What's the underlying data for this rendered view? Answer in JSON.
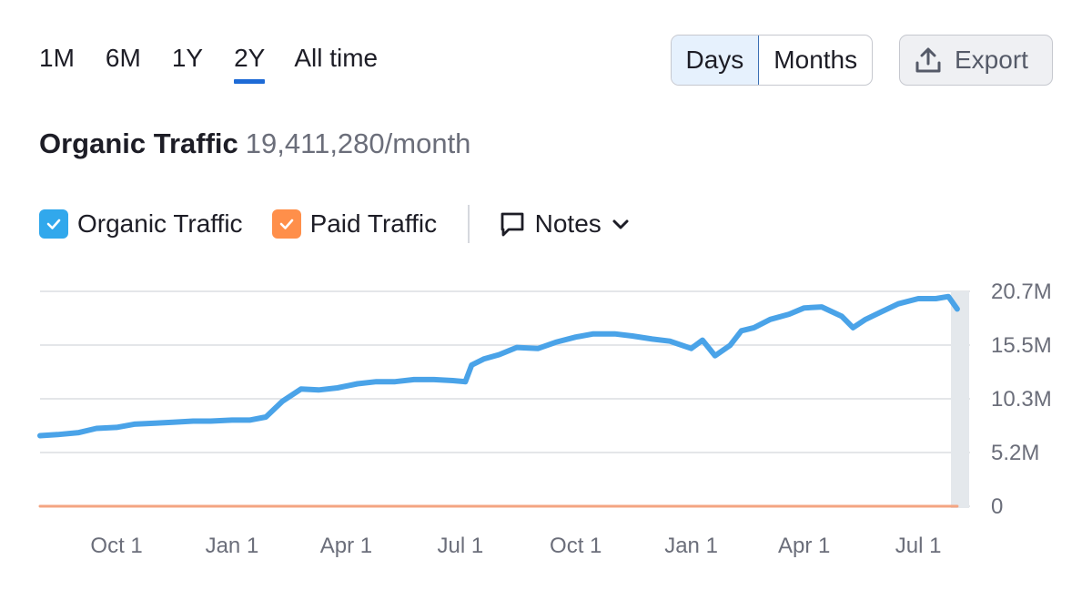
{
  "period_tabs": [
    {
      "label": "1M",
      "active": false
    },
    {
      "label": "6M",
      "active": false
    },
    {
      "label": "1Y",
      "active": false
    },
    {
      "label": "2Y",
      "active": true
    },
    {
      "label": "All time",
      "active": false
    }
  ],
  "granularity": {
    "days_label": "Days",
    "months_label": "Months",
    "selected": "Days"
  },
  "export_label": "Export",
  "headline": {
    "title": "Organic Traffic",
    "value": "19,411,280/month"
  },
  "legend": [
    {
      "label": "Organic Traffic",
      "checked": true,
      "color": "#31a8ec"
    },
    {
      "label": "Paid Traffic",
      "checked": true,
      "color": "#ff8f4a"
    }
  ],
  "notes_label": "Notes",
  "colors": {
    "organic": "#4aa3e8",
    "paid": "#f4a582",
    "accent": "#1e6bd6",
    "grid": "#dcdde2"
  },
  "chart_data": {
    "type": "line",
    "x_ticks": [
      "Oct 1",
      "Jan 1",
      "Apr 1",
      "Jul 1",
      "Oct 1",
      "Jan 1",
      "Apr 1",
      "Jul 1"
    ],
    "y_ticks": [
      "20.7M",
      "15.5M",
      "10.3M",
      "5.2M",
      "0"
    ],
    "ylim": [
      0,
      20.7
    ],
    "y_unit": "M",
    "grid": true,
    "series": [
      {
        "name": "Organic Traffic",
        "x": [
          "2023-08-01",
          "2023-08-15",
          "2023-09-01",
          "2023-09-15",
          "2023-10-01",
          "2023-10-15",
          "2023-11-01",
          "2023-11-15",
          "2023-12-01",
          "2023-12-15",
          "2024-01-01",
          "2024-01-15",
          "2024-01-28",
          "2024-02-10",
          "2024-02-25",
          "2024-03-10",
          "2024-03-25",
          "2024-04-10",
          "2024-04-25",
          "2024-05-10",
          "2024-05-25",
          "2024-06-10",
          "2024-06-25",
          "2024-07-05",
          "2024-07-10",
          "2024-07-20",
          "2024-08-01",
          "2024-08-15",
          "2024-09-01",
          "2024-09-15",
          "2024-10-01",
          "2024-10-15",
          "2024-11-01",
          "2024-11-15",
          "2024-12-01",
          "2024-12-15",
          "2025-01-01",
          "2025-01-10",
          "2025-01-20",
          "2025-02-01",
          "2025-02-10",
          "2025-02-20",
          "2025-03-05",
          "2025-03-20",
          "2025-04-01",
          "2025-04-15",
          "2025-05-01",
          "2025-05-10",
          "2025-05-20",
          "2025-06-01",
          "2025-06-15",
          "2025-07-01",
          "2025-07-15",
          "2025-07-25",
          "2025-08-01"
        ],
        "values": [
          6.8,
          6.9,
          7.1,
          7.5,
          7.6,
          7.9,
          8.0,
          8.1,
          8.2,
          8.2,
          8.3,
          8.3,
          8.6,
          10.1,
          11.3,
          11.2,
          11.4,
          11.8,
          12.0,
          12.0,
          12.2,
          12.2,
          12.1,
          12.0,
          13.6,
          14.2,
          14.6,
          15.3,
          15.2,
          15.8,
          16.3,
          16.6,
          16.6,
          16.4,
          16.1,
          15.9,
          15.2,
          16.0,
          14.5,
          15.5,
          16.9,
          17.2,
          18.0,
          18.5,
          19.1,
          19.2,
          18.3,
          17.2,
          18.0,
          18.7,
          19.5,
          20.0,
          20.0,
          20.2,
          19.0
        ]
      },
      {
        "name": "Paid Traffic",
        "x": [
          "2023-08-01",
          "2025-08-01"
        ],
        "values": [
          0.0,
          0.0
        ]
      }
    ]
  }
}
